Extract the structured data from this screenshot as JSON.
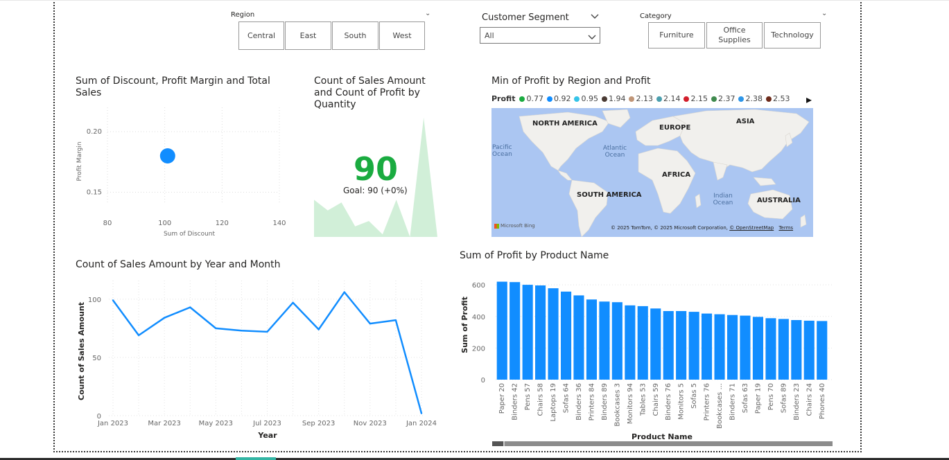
{
  "slicers": {
    "region": {
      "title": "Region",
      "options": [
        "Central",
        "East",
        "South",
        "West"
      ]
    },
    "segment": {
      "title": "Customer Segment",
      "selected": "All"
    },
    "category": {
      "title": "Category",
      "options": [
        "Furniture",
        "Office Supplies",
        "Technology"
      ]
    }
  },
  "scatter": {
    "title": "Sum of Discount, Profit Margin and Total Sales",
    "chart_data": {
      "type": "scatter",
      "xlabel": "Sum of Discount",
      "ylabel": "Profit Margin",
      "x_ticks": [
        "80",
        "100",
        "120",
        "140"
      ],
      "y_ticks": [
        "0.20",
        "0.15"
      ],
      "xlim": [
        80,
        140
      ],
      "ylim": [
        0.14,
        0.22
      ],
      "points": [
        {
          "x": 101,
          "y": 0.18
        }
      ]
    }
  },
  "kpi": {
    "title": "Count of Sales Amount and Count of Profit by Quantity",
    "value": "90",
    "check": "✓",
    "goal": "Goal: 90 (+0%)",
    "trend": [
      28,
      20,
      26,
      8,
      12,
      2,
      28,
      0,
      90,
      0
    ]
  },
  "map": {
    "title": "Min of Profit by Region and Profit",
    "legend_title": "Profit",
    "legend": [
      {
        "label": "0.77",
        "color": "#1aab40"
      },
      {
        "label": "0.92",
        "color": "#118dff"
      },
      {
        "label": "0.95",
        "color": "#35c4e8"
      },
      {
        "label": "1.94",
        "color": "#4a3b34"
      },
      {
        "label": "2.13",
        "color": "#c09577"
      },
      {
        "label": "2.14",
        "color": "#4c9fae"
      },
      {
        "label": "2.15",
        "color": "#d21e2b"
      },
      {
        "label": "2.37",
        "color": "#3f8a4e"
      },
      {
        "label": "2.38",
        "color": "#2e96e8"
      },
      {
        "label": "2.53",
        "color": "#6d2a1a"
      }
    ],
    "next_icon": "▸",
    "labels": {
      "north_america": "NORTH AMERICA",
      "europe": "EUROPE",
      "asia": "ASIA",
      "africa": "AFRICA",
      "south_america": "SOUTH AMERICA",
      "australia": "AUSTRALIA",
      "pacific": "Pacific Ocean",
      "atlantic": "Atlantic Ocean",
      "indian": "Indian Ocean"
    },
    "attribution": "© 2025 TomTom, © 2025 Microsoft Corporation,",
    "osm": "© OpenStreetMap",
    "terms": "Terms",
    "bing": "Microsoft Bing"
  },
  "line": {
    "title": "Count of Sales Amount by Year and Month",
    "chart_data": {
      "type": "line",
      "xlabel": "Year",
      "ylabel": "Count of Sales Amount",
      "x_ticks": [
        "Jan 2023",
        "Mar 2023",
        "May 2023",
        "Jul 2023",
        "Sep 2023",
        "Nov 2023",
        "Jan 2024"
      ],
      "y_ticks": [
        "100",
        "50",
        "0"
      ],
      "ylim": [
        0,
        110
      ],
      "values": [
        99,
        69,
        84,
        93,
        75,
        73,
        72,
        97,
        74,
        106,
        79,
        82,
        2
      ],
      "color": "#118dff"
    }
  },
  "bar": {
    "title": "Sum of Profit by Product Name",
    "chart_data": {
      "type": "bar",
      "xlabel": "Product Name",
      "ylabel": "Sum of Profit",
      "y_ticks": [
        "600",
        "400",
        "200",
        "0"
      ],
      "ylim": [
        0,
        640
      ],
      "categories": [
        "Paper 20",
        "Binders 42",
        "Pens 57",
        "Chairs 58",
        "Laptops 19",
        "Sofas 64",
        "Binders 36",
        "Printers 84",
        "Binders 89",
        "Bookcases 3",
        "Monitors 94",
        "Tables 53",
        "Chairs 59",
        "Binders 76",
        "Monitors 5",
        "Sofas 5",
        "Printers 76",
        "Bookcases ...",
        "Binders 71",
        "Sofas 63",
        "Paper 19",
        "Pens 70",
        "Sofas 89",
        "Binders 23",
        "Chairs 24",
        "Phones 40"
      ],
      "values": [
        620,
        617,
        600,
        596,
        578,
        557,
        533,
        507,
        494,
        490,
        470,
        465,
        450,
        434,
        434,
        429,
        418,
        414,
        409,
        405,
        397,
        389,
        384,
        377,
        373,
        371
      ],
      "color": "#118dff"
    }
  }
}
